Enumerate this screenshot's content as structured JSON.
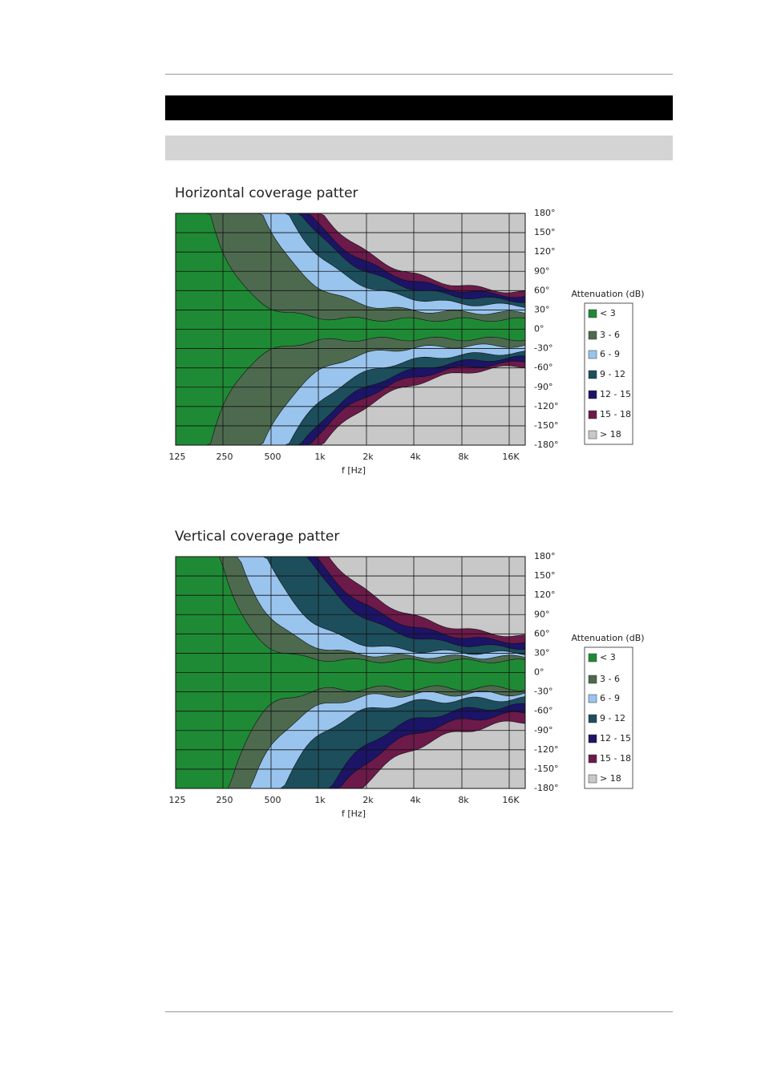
{
  "charts": [
    {
      "title": "Horizontal coverage patter",
      "x_ticks": [
        "125",
        "250",
        "500",
        "1k",
        "2k",
        "4k",
        "8k",
        "16K"
      ],
      "x_label": "f [Hz]",
      "y_ticks": [
        "180°",
        "150°",
        "120°",
        "90°",
        "60°",
        "30°",
        "0°",
        "-30°",
        "-60°",
        "-90°",
        "-120°",
        "-150°",
        "-180°"
      ],
      "legend_title": "Attenuation (dB)",
      "legend": [
        {
          "label": "< 3",
          "color": "#1f8a35"
        },
        {
          "label": "3 - 6",
          "color": "#4d6a4f"
        },
        {
          "label": "6 - 9",
          "color": "#99c4ee"
        },
        {
          "label": "9 - 12",
          "color": "#1d4e5c"
        },
        {
          "label": "12 - 15",
          "color": "#1c1466"
        },
        {
          "label": "15 - 18",
          "color": "#6c1a4a"
        },
        {
          "label": "> 18",
          "color": "#c8c8c8"
        }
      ]
    },
    {
      "title": "Vertical coverage patter",
      "x_ticks": [
        "125",
        "250",
        "500",
        "1k",
        "2k",
        "4k",
        "8k",
        "16K"
      ],
      "x_label": "f [Hz]",
      "y_ticks": [
        "180°",
        "150°",
        "120°",
        "90°",
        "60°",
        "30°",
        "0°",
        "-30°",
        "-60°",
        "-90°",
        "-120°",
        "-150°",
        "-180°"
      ],
      "legend_title": "Attenuation (dB)",
      "legend": [
        {
          "label": "< 3",
          "color": "#1f8a35"
        },
        {
          "label": "3 - 6",
          "color": "#4d6a4f"
        },
        {
          "label": "6 - 9",
          "color": "#99c4ee"
        },
        {
          "label": "9 - 12",
          "color": "#1d4e5c"
        },
        {
          "label": "12 - 15",
          "color": "#1c1466"
        },
        {
          "label": "15 - 18",
          "color": "#6c1a4a"
        },
        {
          "label": "> 18",
          "color": "#c8c8c8"
        }
      ]
    }
  ]
}
